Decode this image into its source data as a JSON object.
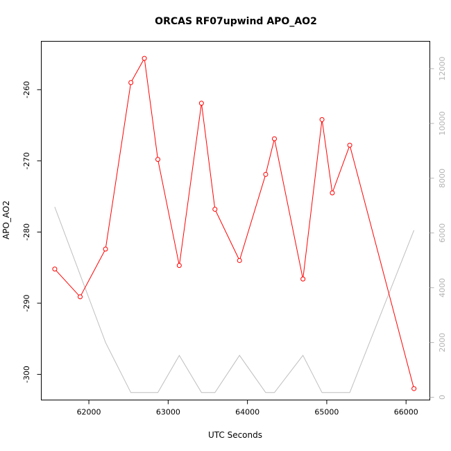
{
  "chart_data": {
    "type": "line",
    "title": "ORCAS RF07upwind APO_AO2",
    "xlabel": "UTC Seconds",
    "ylabel": "APO_AO2",
    "xlim": [
      61400,
      66300
    ],
    "ylim": [
      -303.6,
      -253.2
    ],
    "y2lim": [
      -100,
      13000
    ],
    "x_ticks": [
      62000,
      63000,
      64000,
      65000,
      66000
    ],
    "y_ticks": [
      -300,
      -290,
      -280,
      -270,
      -260
    ],
    "y2_ticks": [
      0,
      2000,
      4000,
      6000,
      8000,
      10000,
      12000
    ],
    "grid": false,
    "series": [
      {
        "axis": "left",
        "color": "#ff0000",
        "markers": "open-circle",
        "x": [
          61570,
          61890,
          62210,
          62530,
          62700,
          62870,
          63140,
          63420,
          63590,
          63900,
          64230,
          64340,
          64700,
          64940,
          65070,
          65290,
          66100
        ],
        "y": [
          -285.2,
          -289.1,
          -282.4,
          -259.0,
          -255.6,
          -269.8,
          -284.7,
          -261.9,
          -276.8,
          -284.0,
          -271.9,
          -266.9,
          -286.6,
          -264.2,
          -274.5,
          -267.8,
          -302.0
        ]
      },
      {
        "axis": "right",
        "color": "#bebebe",
        "markers": "none",
        "x": [
          61570,
          62210,
          62530,
          62870,
          63140,
          63420,
          63590,
          63900,
          64230,
          64340,
          64700,
          64940,
          65290,
          66100
        ],
        "y": [
          6950,
          2000,
          170,
          170,
          1530,
          170,
          170,
          1530,
          170,
          170,
          1530,
          170,
          170,
          6100
        ]
      }
    ]
  }
}
